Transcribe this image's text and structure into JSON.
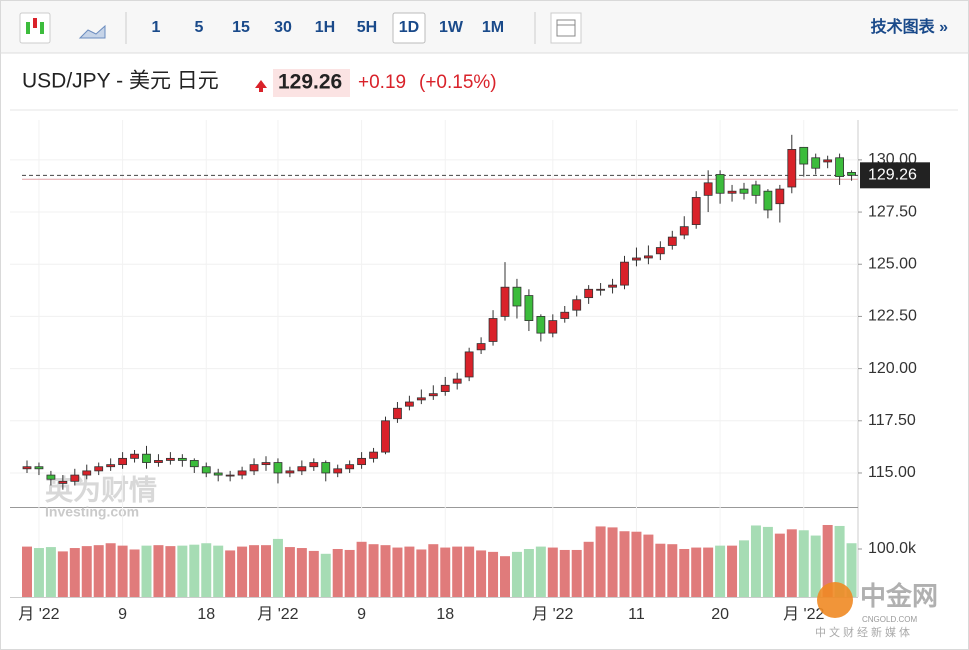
{
  "toolbar": {
    "intervals": [
      "1",
      "5",
      "15",
      "30",
      "1H",
      "5H",
      "1D",
      "1W",
      "1M"
    ],
    "active": "1D",
    "link": "技术图表 »"
  },
  "header": {
    "title": "USD/JPY - 美元 日元",
    "price": "129.26",
    "change": "+0.19",
    "change_pct": "(+0.15%)"
  },
  "watermark": {
    "brand": "英为财情",
    "site": "Investing.com"
  },
  "logo": {
    "name": "中金网",
    "domain": "CNGOLD.COM",
    "slogan": "中文财经新媒体"
  },
  "chart_data": {
    "type": "candlestick",
    "categories": [
      null,
      "月 '22",
      null,
      null,
      null,
      null,
      null,
      null,
      "9",
      null,
      null,
      null,
      null,
      null,
      null,
      "18",
      null,
      null,
      null,
      null,
      null,
      "月 '22",
      null,
      null,
      null,
      null,
      null,
      null,
      "9",
      null,
      null,
      null,
      null,
      null,
      null,
      "18",
      null,
      null,
      null,
      null,
      null,
      null,
      null,
      null,
      "月 '22",
      null,
      null,
      null,
      null,
      null,
      null,
      "11",
      null,
      null,
      null,
      null,
      null,
      null,
      "20",
      null,
      null,
      null,
      null,
      null,
      null,
      "月 '22",
      null,
      null,
      null,
      null
    ],
    "open": [
      115.2,
      115.3,
      114.9,
      114.5,
      114.6,
      114.9,
      115.1,
      115.3,
      115.4,
      115.7,
      115.9,
      115.5,
      115.6,
      115.7,
      115.6,
      115.3,
      115.0,
      114.9,
      114.9,
      115.1,
      115.4,
      115.5,
      115.0,
      115.1,
      115.3,
      115.5,
      115.0,
      115.2,
      115.4,
      115.7,
      116.0,
      117.6,
      118.2,
      118.5,
      118.7,
      118.9,
      119.3,
      119.6,
      120.9,
      121.3,
      122.5,
      123.9,
      123.5,
      122.5,
      121.7,
      122.4,
      122.8,
      123.4,
      123.8,
      123.9,
      124.0,
      125.2,
      125.3,
      125.5,
      125.9,
      126.4,
      126.9,
      128.3,
      129.3,
      128.4,
      128.6,
      128.8,
      128.5,
      127.9,
      128.7,
      130.6,
      130.1,
      129.9,
      130.1,
      129.4
    ],
    "high": [
      115.6,
      115.5,
      115.1,
      114.9,
      115.2,
      115.4,
      115.5,
      115.7,
      116.0,
      116.1,
      116.3,
      115.9,
      116.0,
      115.9,
      115.7,
      115.5,
      115.2,
      115.1,
      115.3,
      115.7,
      115.8,
      115.7,
      115.3,
      115.6,
      115.7,
      115.6,
      115.4,
      115.6,
      116.0,
      116.2,
      117.7,
      118.4,
      118.7,
      119.0,
      119.2,
      119.6,
      119.8,
      121.0,
      121.5,
      122.8,
      125.1,
      124.3,
      123.8,
      122.6,
      122.6,
      123.0,
      123.5,
      124.0,
      124.1,
      124.3,
      125.4,
      125.8,
      125.9,
      126.1,
      126.6,
      127.3,
      128.5,
      129.5,
      129.5,
      128.8,
      128.9,
      129.0,
      128.6,
      128.8,
      131.2,
      130.6,
      130.3,
      130.2,
      130.3,
      129.5
    ],
    "low": [
      115.0,
      114.9,
      114.4,
      114.2,
      114.4,
      114.7,
      114.9,
      115.1,
      115.2,
      115.5,
      115.2,
      115.3,
      115.4,
      115.3,
      115.0,
      114.8,
      114.6,
      114.6,
      114.7,
      114.9,
      115.1,
      114.5,
      114.8,
      114.9,
      115.1,
      114.6,
      114.8,
      115.0,
      115.2,
      115.5,
      115.9,
      117.4,
      118.0,
      118.3,
      118.5,
      118.7,
      119.0,
      119.4,
      120.7,
      121.1,
      122.3,
      122.4,
      121.8,
      121.3,
      121.5,
      122.2,
      122.5,
      123.1,
      123.5,
      123.6,
      123.8,
      124.9,
      125.0,
      125.2,
      125.7,
      126.2,
      126.7,
      127.5,
      127.9,
      128.0,
      128.1,
      127.9,
      127.2,
      127.0,
      128.4,
      129.2,
      129.3,
      129.6,
      128.8,
      129.0
    ],
    "close": [
      115.3,
      115.2,
      114.7,
      114.6,
      114.9,
      115.1,
      115.3,
      115.4,
      115.7,
      115.9,
      115.5,
      115.6,
      115.7,
      115.6,
      115.3,
      115.0,
      114.9,
      114.9,
      115.1,
      115.4,
      115.5,
      115.0,
      115.1,
      115.3,
      115.5,
      115.0,
      115.2,
      115.4,
      115.7,
      116.0,
      117.5,
      118.1,
      118.4,
      118.6,
      118.8,
      119.2,
      119.5,
      120.8,
      121.2,
      122.4,
      123.9,
      123.0,
      122.3,
      121.7,
      122.3,
      122.7,
      123.3,
      123.8,
      123.8,
      124.0,
      125.1,
      125.3,
      125.4,
      125.8,
      126.3,
      126.8,
      128.2,
      128.9,
      128.4,
      128.5,
      128.4,
      128.3,
      127.6,
      128.6,
      130.5,
      129.8,
      129.6,
      130.0,
      129.2,
      129.26
    ],
    "volume": [
      105,
      102,
      104,
      95,
      102,
      106,
      108,
      112,
      107,
      99,
      107,
      108,
      106,
      107,
      109,
      112,
      107,
      97,
      105,
      108,
      108,
      121,
      104,
      102,
      96,
      90,
      100,
      98,
      115,
      110,
      108,
      103,
      105,
      99,
      110,
      103,
      105,
      105,
      97,
      94,
      85,
      94,
      100,
      105,
      103,
      98,
      98,
      115,
      147,
      145,
      137,
      136,
      130,
      111,
      110,
      100,
      103,
      103,
      107,
      107,
      118,
      149,
      146,
      132,
      141,
      139,
      128,
      150,
      148,
      112
    ],
    "up_color": "#d9222a",
    "down_color": "#3cbc3c",
    "vol_up_color": "#e07b7b",
    "vol_down_color": "#a6dcb4",
    "ylim": [
      113.37,
      131.91
    ],
    "yticks": [
      {
        "value": 115,
        "label": "115.00"
      },
      {
        "value": 117.5,
        "label": "117.50"
      },
      {
        "value": 120,
        "label": "120.00"
      },
      {
        "value": 122.5,
        "label": "122.50"
      },
      {
        "value": 125,
        "label": "125.00"
      },
      {
        "value": 127.5,
        "label": "127.50"
      },
      {
        "value": 130,
        "label": "130.00"
      }
    ],
    "vol_ylim": [
      0,
      185.4
    ],
    "vol_yticks": [
      {
        "value": 100,
        "label": "100.0k"
      }
    ],
    "last_price": 129.26,
    "previous_close": 129.07,
    "grid": true
  }
}
